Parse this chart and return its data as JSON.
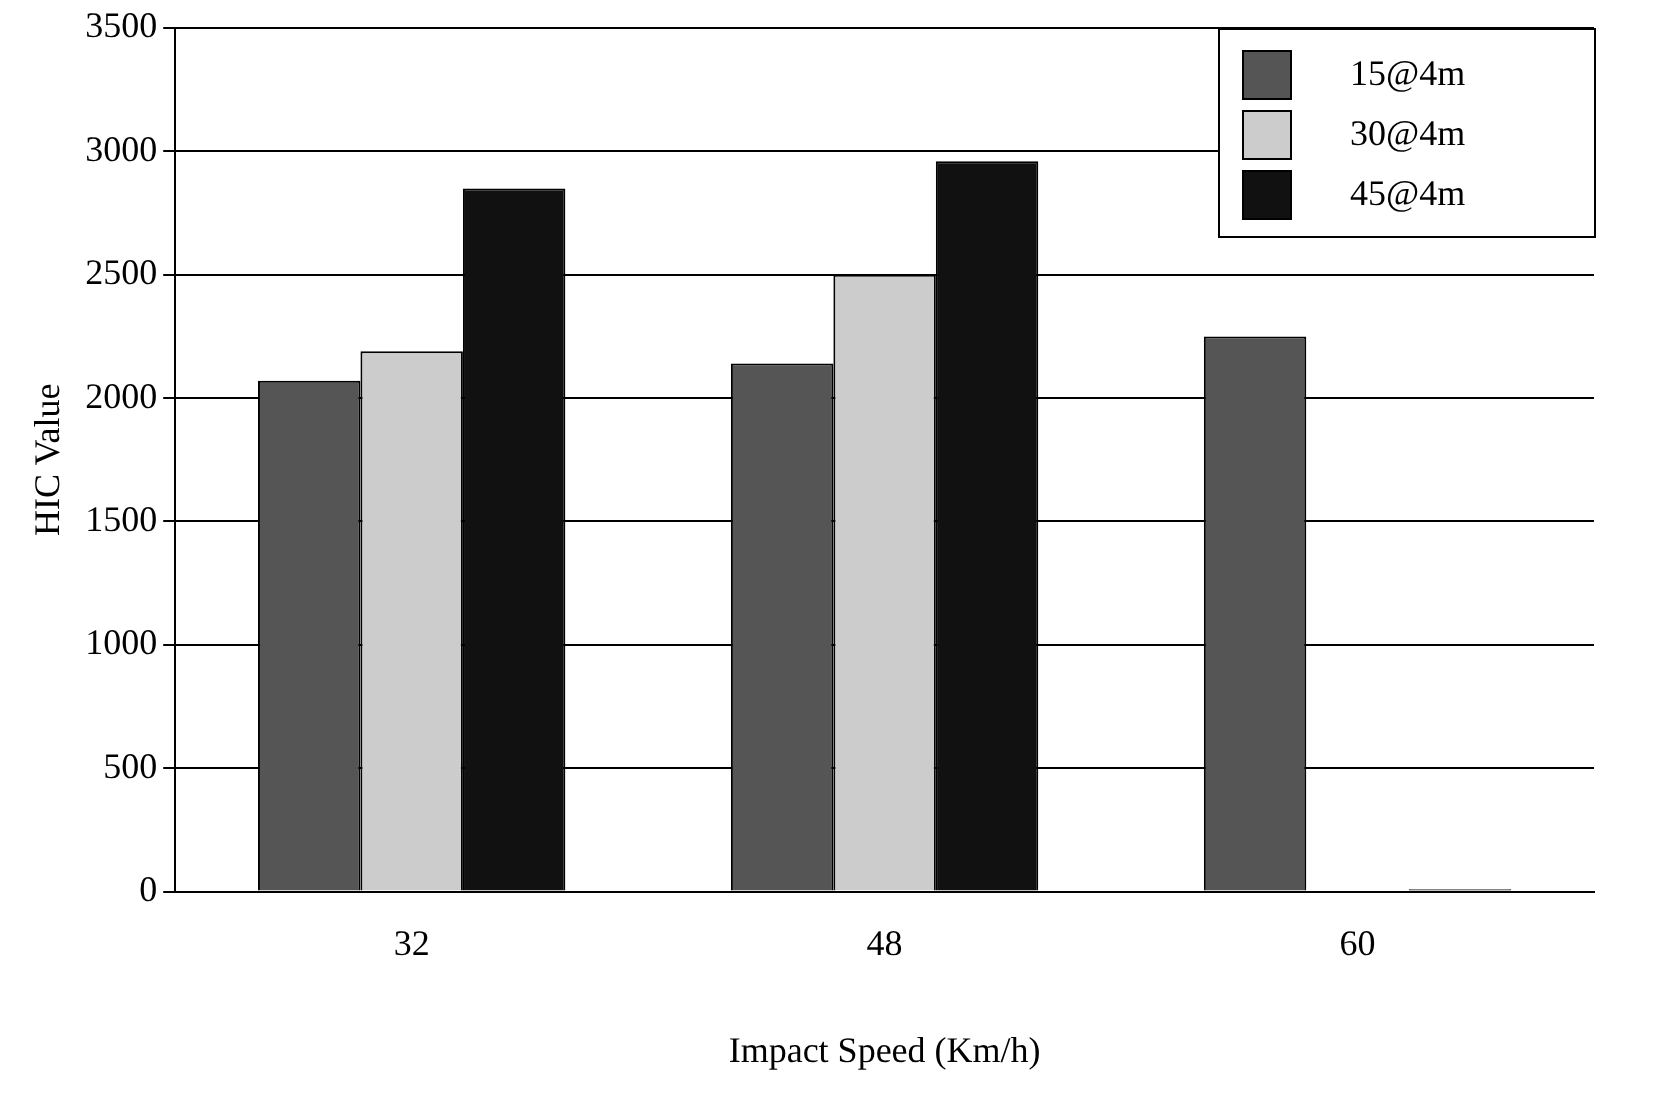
{
  "chart_data": {
    "type": "bar",
    "xlabel": "Impact Speed (Km/h)",
    "ylabel": "HIC Value",
    "categories": [
      "32",
      "48",
      "60"
    ],
    "series": [
      {
        "name": "15@4m",
        "color": "#555555",
        "values": [
          2070,
          2140,
          2250
        ]
      },
      {
        "name": "30@4m",
        "color": "#cccccc",
        "values": [
          2190,
          2500,
          0
        ]
      },
      {
        "name": "45@4m",
        "color": "#111111",
        "values": [
          2850,
          2960,
          10
        ]
      }
    ],
    "ylim": [
      0,
      3500
    ],
    "yticks": [
      0,
      500,
      1000,
      1500,
      2000,
      2500,
      3000,
      3500
    ],
    "grid": "y",
    "legend": "top right"
  }
}
